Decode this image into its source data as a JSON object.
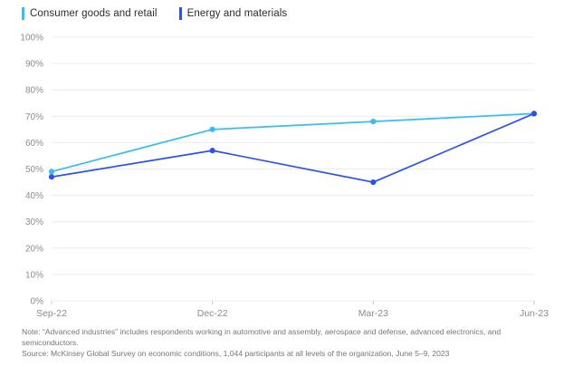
{
  "chart_data": {
    "type": "line",
    "categories": [
      "Sep-22",
      "Dec-22",
      "Mar-23",
      "Jun-23"
    ],
    "series": [
      {
        "name": "Consumer goods and retail",
        "color": "#38bdf2",
        "values": [
          49,
          65,
          68,
          71
        ]
      },
      {
        "name": "Energy and materials",
        "color": "#2b52f0",
        "values": [
          47,
          57,
          45,
          71
        ]
      }
    ],
    "title": "",
    "xlabel": "",
    "ylabel": "",
    "ylim": [
      0,
      100
    ],
    "ytick_step": 10,
    "ytick_suffix": "%",
    "grid": true,
    "legend_position": "top-left",
    "grid_color": "#ececec",
    "tick_color": "#c9c9c9",
    "axis_label_color": "#8c8c8c"
  },
  "notes": {
    "note": "Note: “Advanced industries” includes respondents working in automotive and assembly, aerospace and defense, advanced electronics, and semiconductors.",
    "source": "Source: McKinsey Global Survey on economic conditions, 1,044 participants at all levels of the organization, June 5–9, 2023"
  }
}
